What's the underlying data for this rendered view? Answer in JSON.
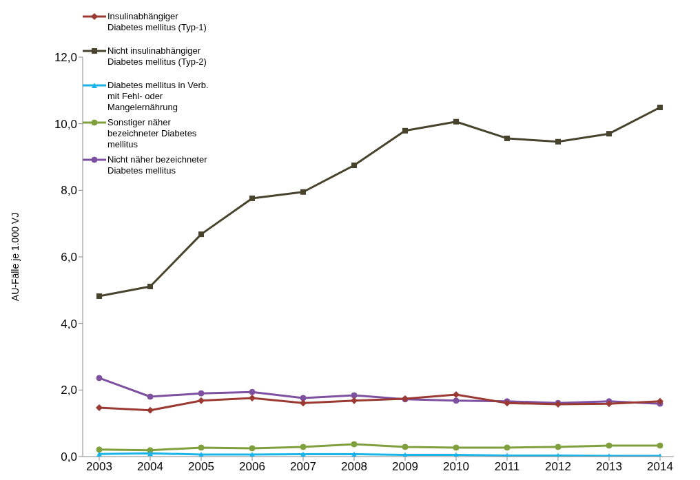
{
  "chart_data": {
    "type": "line",
    "ylabel": "AU-Fälle je 1.000 VJ",
    "categories": [
      "2003",
      "2004",
      "2005",
      "2006",
      "2007",
      "2008",
      "2009",
      "2010",
      "2011",
      "2012",
      "2013",
      "2014"
    ],
    "ylim": [
      0,
      12
    ],
    "yticks": [
      {
        "value": 0,
        "label": "0,0"
      },
      {
        "value": 2,
        "label": "2,0"
      },
      {
        "value": 4,
        "label": "4,0"
      },
      {
        "value": 6,
        "label": "6,0"
      },
      {
        "value": 8,
        "label": "8,0"
      },
      {
        "value": 10,
        "label": "10,0"
      },
      {
        "value": 12,
        "label": "12,0"
      }
    ],
    "grid": false,
    "legend": "top left",
    "line_style": "solid",
    "series": [
      {
        "name": "Insulinabhängiger Diabetes mellitus (Typ-1)",
        "color": "#9b3a32",
        "marker": "diamond",
        "values": [
          1.47,
          1.39,
          1.68,
          1.76,
          1.61,
          1.68,
          1.74,
          1.86,
          1.61,
          1.57,
          1.59,
          1.66
        ]
      },
      {
        "name": "Nicht insulinabhängiger Diabetes mellitus (Typ-2)",
        "color": "#48432c",
        "marker": "square",
        "values": [
          4.82,
          5.11,
          6.68,
          7.76,
          7.95,
          8.75,
          9.79,
          10.06,
          9.56,
          9.46,
          9.7,
          10.49
        ]
      },
      {
        "name": "Diabetes mellitus in Verb. mit Fehl- oder Mangelernährung",
        "color": "#1ab4e8",
        "marker": "triangle",
        "values": [
          0.08,
          0.1,
          0.06,
          0.06,
          0.07,
          0.07,
          0.05,
          0.05,
          0.03,
          0.03,
          0.02,
          0.02
        ]
      },
      {
        "name": "Sonstiger näher bezeichneter Diabetes mellitus",
        "color": "#7fa03c",
        "marker": "circle",
        "values": [
          0.21,
          0.19,
          0.27,
          0.25,
          0.29,
          0.37,
          0.29,
          0.27,
          0.27,
          0.29,
          0.33,
          0.33
        ]
      },
      {
        "name": "Nicht näher bezeichneter Diabetes mellitus",
        "color": "#7d51a0",
        "marker": "circle",
        "values": [
          2.36,
          1.8,
          1.9,
          1.94,
          1.76,
          1.84,
          1.72,
          1.68,
          1.66,
          1.61,
          1.66,
          1.59
        ]
      }
    ]
  }
}
